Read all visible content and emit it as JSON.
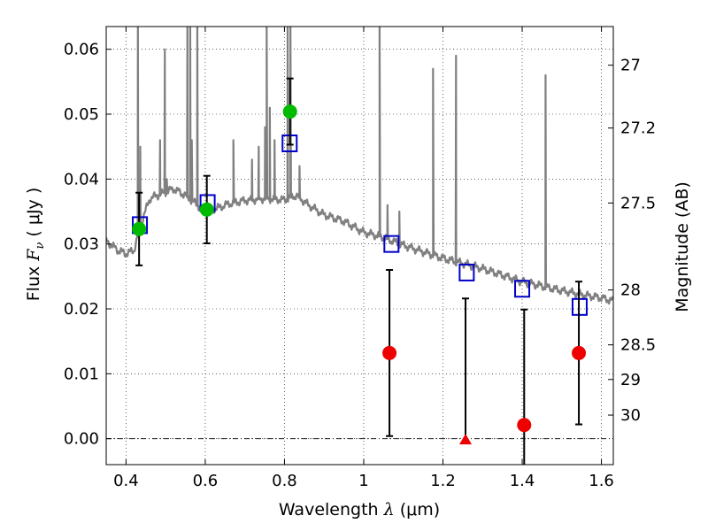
{
  "chart_data": {
    "type": "scatter",
    "xlabel": {
      "prefix": "Wavelength  ",
      "symbol": "λ",
      "unit": " (μm)"
    },
    "ylabel": {
      "prefix": "Flux  ",
      "symbol": "F",
      "sub": "ν",
      "unit": "  ( μJy )"
    },
    "y2label": "Magnitude (AB)",
    "xlim": [
      0.35,
      1.63
    ],
    "ylim": [
      -0.004,
      0.0635
    ],
    "grid": true,
    "x_ticks": [
      {
        "value": 0.4,
        "label": "0.4"
      },
      {
        "value": 0.6,
        "label": "0.6"
      },
      {
        "value": 0.8,
        "label": "0.8"
      },
      {
        "value": 1.0,
        "label": "1"
      },
      {
        "value": 1.2,
        "label": "1.2"
      },
      {
        "value": 1.4,
        "label": "1.4"
      },
      {
        "value": 1.6,
        "label": "1.6"
      }
    ],
    "y_ticks": [
      {
        "value": 0.0,
        "label": "0.00"
      },
      {
        "value": 0.01,
        "label": "0.01"
      },
      {
        "value": 0.02,
        "label": "0.02"
      },
      {
        "value": 0.03,
        "label": "0.03"
      },
      {
        "value": 0.04,
        "label": "0.04"
      },
      {
        "value": 0.05,
        "label": "0.05"
      },
      {
        "value": 0.06,
        "label": "0.06"
      }
    ],
    "y2_ticks": [
      {
        "mag": 27,
        "label": "27"
      },
      {
        "mag": 27.2,
        "label": "27.2"
      },
      {
        "mag": 27.5,
        "label": "27.5"
      },
      {
        "mag": 28,
        "label": "28"
      },
      {
        "mag": 28.5,
        "label": "28.5"
      },
      {
        "mag": 29,
        "label": "29"
      },
      {
        "mag": 30,
        "label": "30"
      }
    ],
    "series": [
      {
        "kind": "line",
        "color": "#808080",
        "continuum": [
          [
            0.35,
            0.0305
          ],
          [
            0.38,
            0.029
          ],
          [
            0.4,
            0.0285
          ],
          [
            0.42,
            0.029
          ],
          [
            0.44,
            0.0335
          ],
          [
            0.46,
            0.037
          ],
          [
            0.48,
            0.0375
          ],
          [
            0.5,
            0.038
          ],
          [
            0.52,
            0.0385
          ],
          [
            0.55,
            0.0375
          ],
          [
            0.58,
            0.036
          ],
          [
            0.6,
            0.035
          ],
          [
            0.63,
            0.0355
          ],
          [
            0.66,
            0.0362
          ],
          [
            0.7,
            0.0367
          ],
          [
            0.75,
            0.037
          ],
          [
            0.8,
            0.0368
          ],
          [
            0.83,
            0.0375
          ],
          [
            0.86,
            0.036
          ],
          [
            0.9,
            0.0345
          ],
          [
            0.95,
            0.0335
          ],
          [
            1.0,
            0.0318
          ],
          [
            1.05,
            0.031
          ],
          [
            1.1,
            0.0298
          ],
          [
            1.15,
            0.0288
          ],
          [
            1.2,
            0.0278
          ],
          [
            1.25,
            0.027
          ],
          [
            1.3,
            0.0262
          ],
          [
            1.35,
            0.0252
          ],
          [
            1.4,
            0.0242
          ],
          [
            1.45,
            0.0235
          ],
          [
            1.5,
            0.0228
          ],
          [
            1.55,
            0.0222
          ],
          [
            1.6,
            0.0217
          ],
          [
            1.63,
            0.0212
          ]
        ],
        "emission_lines": [
          {
            "x": 0.43,
            "peak": 0.065
          },
          {
            "x": 0.436,
            "peak": 0.045
          },
          {
            "x": 0.486,
            "peak": 0.046
          },
          {
            "x": 0.498,
            "peak": 0.06
          },
          {
            "x": 0.503,
            "peak": 0.04
          },
          {
            "x": 0.555,
            "peak": 0.065
          },
          {
            "x": 0.562,
            "peak": 0.065
          },
          {
            "x": 0.566,
            "peak": 0.046
          },
          {
            "x": 0.58,
            "peak": 0.065
          },
          {
            "x": 0.671,
            "peak": 0.046
          },
          {
            "x": 0.718,
            "peak": 0.043
          },
          {
            "x": 0.735,
            "peak": 0.045
          },
          {
            "x": 0.751,
            "peak": 0.048
          },
          {
            "x": 0.755,
            "peak": 0.065
          },
          {
            "x": 0.763,
            "peak": 0.051
          },
          {
            "x": 0.775,
            "peak": 0.046
          },
          {
            "x": 0.808,
            "peak": 0.065
          },
          {
            "x": 0.815,
            "peak": 0.065
          },
          {
            "x": 0.838,
            "peak": 0.042
          },
          {
            "x": 1.04,
            "peak": 0.065
          },
          {
            "x": 1.06,
            "peak": 0.036
          },
          {
            "x": 1.09,
            "peak": 0.035
          },
          {
            "x": 1.175,
            "peak": 0.057
          },
          {
            "x": 1.233,
            "peak": 0.059
          },
          {
            "x": 1.459,
            "peak": 0.056
          }
        ]
      },
      {
        "kind": "points",
        "marker": "circle",
        "color": "#00bb00",
        "points": [
          {
            "x": 0.433,
            "y": 0.0323,
            "err": 0.0056
          },
          {
            "x": 0.604,
            "y": 0.0353,
            "err": 0.0052
          },
          {
            "x": 0.814,
            "y": 0.0504,
            "err": 0.0051
          }
        ]
      },
      {
        "kind": "points",
        "marker": "circle",
        "color": "#ee0000",
        "points": [
          {
            "x": 1.065,
            "y": 0.0132,
            "err": 0.0128
          },
          {
            "x": 1.405,
            "y": 0.0021,
            "err": 0.0178
          },
          {
            "x": 1.543,
            "y": 0.0132,
            "err": 0.011
          }
        ]
      },
      {
        "kind": "points",
        "marker": "triangle",
        "color": "#ee0000",
        "points": [
          {
            "x": 1.257,
            "y": -0.0002,
            "err_hi": 0.0218
          }
        ]
      },
      {
        "kind": "points",
        "marker": "open-square",
        "color": "#0000cc",
        "points": [
          {
            "x": 0.435,
            "y": 0.0329
          },
          {
            "x": 0.606,
            "y": 0.0363
          },
          {
            "x": 0.813,
            "y": 0.0455
          },
          {
            "x": 1.07,
            "y": 0.03
          },
          {
            "x": 1.26,
            "y": 0.0256
          },
          {
            "x": 1.4,
            "y": 0.0231
          },
          {
            "x": 1.545,
            "y": 0.0203
          }
        ]
      }
    ]
  }
}
